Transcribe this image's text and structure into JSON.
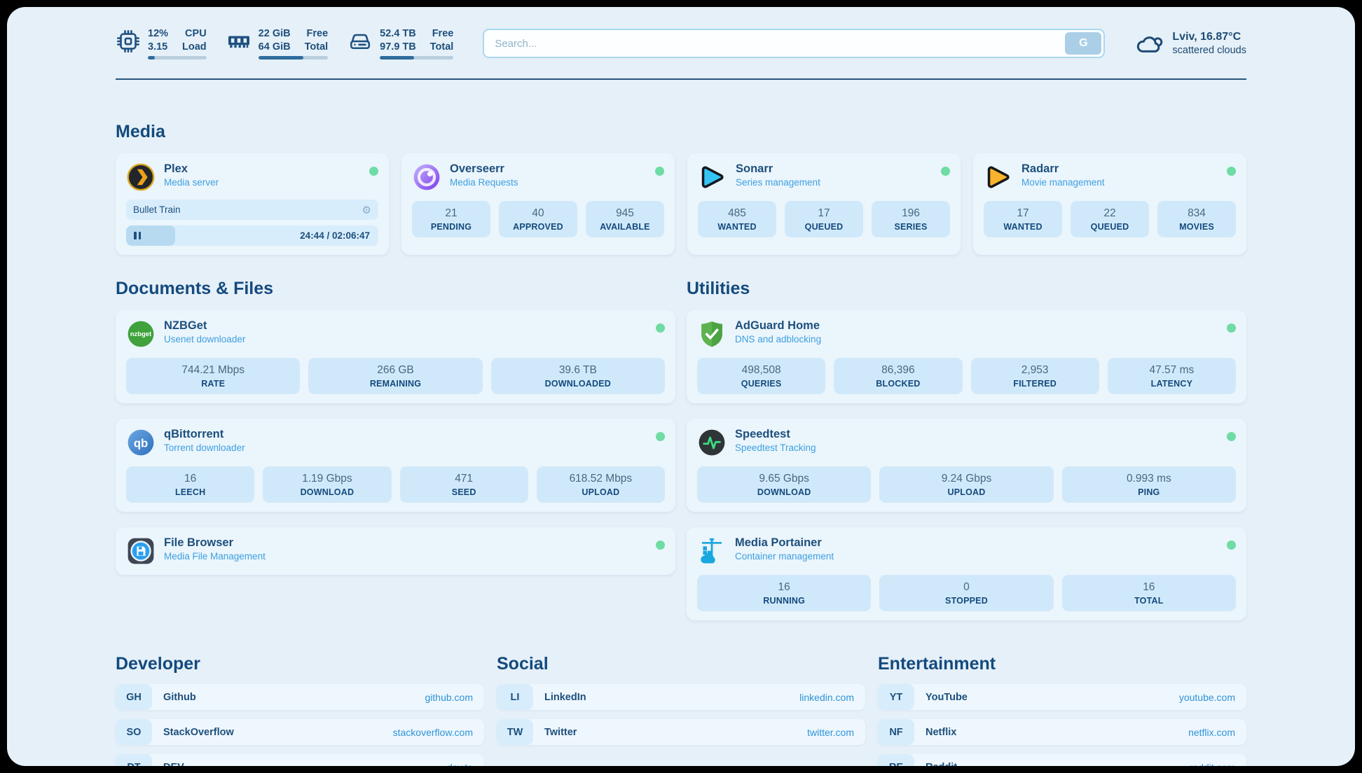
{
  "topbar": {
    "widgets": [
      {
        "icon": "cpu-icon",
        "value1": "12%",
        "label1": "CPU",
        "value2": "3.15",
        "label2": "Load",
        "progress_pct": 12
      },
      {
        "icon": "ram-icon",
        "value1": "22 GiB",
        "label1": "Free",
        "value2": "64 GiB",
        "label2": "Total",
        "progress_pct": 65
      },
      {
        "icon": "disk-icon",
        "value1": "52.4 TB",
        "label1": "Free",
        "value2": "97.9 TB",
        "label2": "Total",
        "progress_pct": 46
      }
    ],
    "search": {
      "placeholder": "Search...",
      "button": "G"
    },
    "weather": {
      "location": "Lviv, 16.87°C",
      "condition": "scattered clouds"
    }
  },
  "media": {
    "title": "Media",
    "plex": {
      "name": "Plex",
      "subtitle": "Media server",
      "status": "online",
      "player": {
        "title": "Bullet Train",
        "time": "24:44 / 02:06:47",
        "progress_pct": 19.5,
        "gear_icon": "⚙"
      }
    },
    "overseerr": {
      "name": "Overseerr",
      "subtitle": "Media Requests",
      "status": "online",
      "stats": [
        {
          "value": "21",
          "label": "PENDING"
        },
        {
          "value": "40",
          "label": "APPROVED"
        },
        {
          "value": "945",
          "label": "AVAILABLE"
        }
      ]
    },
    "sonarr": {
      "name": "Sonarr",
      "subtitle": "Series management",
      "status": "online",
      "stats": [
        {
          "value": "485",
          "label": "WANTED"
        },
        {
          "value": "17",
          "label": "QUEUED"
        },
        {
          "value": "196",
          "label": "SERIES"
        }
      ]
    },
    "radarr": {
      "name": "Radarr",
      "subtitle": "Movie management",
      "status": "online",
      "stats": [
        {
          "value": "17",
          "label": "WANTED"
        },
        {
          "value": "22",
          "label": "QUEUED"
        },
        {
          "value": "834",
          "label": "MOVIES"
        }
      ]
    }
  },
  "documents": {
    "title": "Documents & Files",
    "nzbget": {
      "name": "NZBGet",
      "subtitle": "Usenet downloader",
      "status": "online",
      "stats": [
        {
          "value": "744.21 Mbps",
          "label": "RATE"
        },
        {
          "value": "266 GB",
          "label": "REMAINING"
        },
        {
          "value": "39.6 TB",
          "label": "DOWNLOADED"
        }
      ]
    },
    "qbittorrent": {
      "name": "qBittorrent",
      "subtitle": "Torrent downloader",
      "status": "online",
      "stats": [
        {
          "value": "16",
          "label": "LEECH"
        },
        {
          "value": "1.19 Gbps",
          "label": "DOWNLOAD"
        },
        {
          "value": "471",
          "label": "SEED"
        },
        {
          "value": "618.52 Mbps",
          "label": "UPLOAD"
        }
      ]
    },
    "filebrowser": {
      "name": "File Browser",
      "subtitle": "Media File Management",
      "status": "online"
    }
  },
  "utilities": {
    "title": "Utilities",
    "adguard": {
      "name": "AdGuard Home",
      "subtitle": "DNS and adblocking",
      "status": "online",
      "stats": [
        {
          "value": "498,508",
          "label": "QUERIES"
        },
        {
          "value": "86,396",
          "label": "BLOCKED"
        },
        {
          "value": "2,953",
          "label": "FILTERED"
        },
        {
          "value": "47.57 ms",
          "label": "LATENCY"
        }
      ]
    },
    "speedtest": {
      "name": "Speedtest",
      "subtitle": "Speedtest Tracking",
      "status": "online",
      "stats": [
        {
          "value": "9.65 Gbps",
          "label": "DOWNLOAD"
        },
        {
          "value": "9.24 Gbps",
          "label": "UPLOAD"
        },
        {
          "value": "0.993 ms",
          "label": "PING"
        }
      ]
    },
    "portainer": {
      "name": "Media Portainer",
      "subtitle": "Container management",
      "status": "online",
      "stats": [
        {
          "value": "16",
          "label": "RUNNING"
        },
        {
          "value": "0",
          "label": "STOPPED"
        },
        {
          "value": "16",
          "label": "TOTAL"
        }
      ]
    }
  },
  "links": {
    "developer": {
      "title": "Developer",
      "items": [
        {
          "badge": "GH",
          "name": "Github",
          "url": "github.com"
        },
        {
          "badge": "SO",
          "name": "StackOverflow",
          "url": "stackoverflow.com"
        },
        {
          "badge": "DT",
          "name": "DEV",
          "url": "dev.to"
        }
      ]
    },
    "social": {
      "title": "Social",
      "items": [
        {
          "badge": "LI",
          "name": "LinkedIn",
          "url": "linkedin.com"
        },
        {
          "badge": "TW",
          "name": "Twitter",
          "url": "twitter.com"
        }
      ]
    },
    "entertainment": {
      "title": "Entertainment",
      "items": [
        {
          "badge": "YT",
          "name": "YouTube",
          "url": "youtube.com"
        },
        {
          "badge": "NF",
          "name": "Netflix",
          "url": "netflix.com"
        },
        {
          "badge": "RE",
          "name": "Reddit",
          "url": "reddit.com"
        }
      ]
    }
  },
  "colors": {
    "page_bg": "#e6f0f8",
    "card_bg": "#ebf5fc",
    "stat_bg": "#d0e9fa",
    "accent_navy": "#1d4f7c",
    "subtitle_blue": "#3da0e0",
    "url_blue": "#2e93d8",
    "status_green": "#6edca4",
    "progress_fill": "#2e6d9e"
  }
}
